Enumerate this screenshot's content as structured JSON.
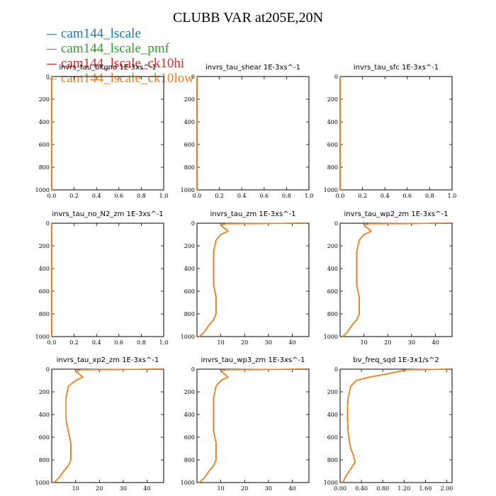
{
  "title": "CLUBB VAR at205E,20N",
  "legend": [
    {
      "name": "cam144_lscale",
      "color": "#1f77b4"
    },
    {
      "name": "cam144_lscale_pmf",
      "color": "#2ca02c"
    },
    {
      "name": "cam144_lscale_ck10hi",
      "color": "#d62728"
    },
    {
      "name": "cam144_lscale_ck10low",
      "color": "#ff7f0e"
    }
  ],
  "chart_data": [
    {
      "type": "line",
      "title": "invrs_tau_bkgnd   1E-3xs^-1",
      "xlim": [
        0,
        1
      ],
      "ylim": [
        1000,
        0
      ],
      "xticks": [
        "0.0",
        "0.2",
        "0.4",
        "0.6",
        "0.8",
        "1.0"
      ],
      "yticks": [
        "0",
        "200",
        "400",
        "600",
        "800",
        "1000"
      ],
      "series": [
        {
          "x": [
            0,
            0
          ],
          "y": [
            0,
            1000
          ]
        }
      ]
    },
    {
      "type": "line",
      "title": "invrs_tau_shear   1E-3xs^-1",
      "xlim": [
        0,
        1
      ],
      "ylim": [
        1000,
        0
      ],
      "xticks": [
        "0.0",
        "0.2",
        "0.4",
        "0.6",
        "0.8",
        "1.0"
      ],
      "yticks": [
        "0",
        "200",
        "400",
        "600",
        "800",
        "1000"
      ],
      "series": [
        {
          "x": [
            0,
            0
          ],
          "y": [
            0,
            1000
          ]
        }
      ]
    },
    {
      "type": "line",
      "title": "invrs_tau_sfc   1E-3xs^-1",
      "xlim": [
        0,
        1
      ],
      "ylim": [
        1000,
        0
      ],
      "xticks": [
        "0.0",
        "0.2",
        "0.4",
        "0.6",
        "0.8",
        "1.0"
      ],
      "yticks": [
        "0",
        "200",
        "400",
        "600",
        "800",
        "1000"
      ],
      "series": [
        {
          "x": [
            0,
            0
          ],
          "y": [
            0,
            1000
          ]
        }
      ]
    },
    {
      "type": "line",
      "title": "invrs_tau_no_N2_zm   1E-3xs^-1",
      "xlim": [
        0,
        1
      ],
      "ylim": [
        1000,
        0
      ],
      "xticks": [
        "0.0",
        "0.2",
        "0.4",
        "0.6",
        "0.8",
        "1.0"
      ],
      "yticks": [
        "0",
        "200",
        "400",
        "600",
        "800",
        "1000"
      ],
      "series": [
        {
          "x": [
            0,
            0
          ],
          "y": [
            0,
            1000
          ]
        }
      ]
    },
    {
      "type": "line",
      "title": "invrs_tau_zm   1E-3xs^-1",
      "xlim": [
        0,
        47
      ],
      "ylim": [
        1000,
        0
      ],
      "xticks": [
        "10",
        "20",
        "30",
        "40"
      ],
      "xtick_values": [
        10,
        20,
        30,
        40
      ],
      "yticks": [
        "0",
        "200",
        "400",
        "600",
        "800",
        "1000"
      ],
      "series": [
        {
          "x": [
            46,
            12,
            10,
            12,
            13,
            10,
            8,
            7,
            7,
            7,
            7,
            8,
            8,
            8,
            7,
            5,
            3,
            1
          ],
          "y": [
            0,
            5,
            20,
            50,
            70,
            100,
            150,
            250,
            350,
            450,
            550,
            650,
            750,
            800,
            850,
            900,
            960,
            1000
          ]
        }
      ]
    },
    {
      "type": "line",
      "title": "invrs_tau_wp2_zm   1E-3xs^-1",
      "xlim": [
        0,
        47
      ],
      "ylim": [
        1000,
        0
      ],
      "xticks": [
        "10",
        "20",
        "30",
        "40"
      ],
      "xtick_values": [
        10,
        20,
        30,
        40
      ],
      "yticks": [
        "0",
        "200",
        "400",
        "600",
        "800",
        "1000"
      ],
      "series": [
        {
          "x": [
            46,
            12,
            10,
            12,
            13,
            10,
            8,
            7,
            7,
            7,
            7,
            8,
            8,
            8,
            7,
            5,
            3,
            1
          ],
          "y": [
            0,
            5,
            20,
            50,
            70,
            100,
            150,
            250,
            350,
            450,
            550,
            650,
            750,
            800,
            850,
            900,
            960,
            1000
          ]
        }
      ]
    },
    {
      "type": "line",
      "title": "invrs_tau_xp2_zm   1E-3xs^-1",
      "xlim": [
        0,
        47
      ],
      "ylim": [
        1000,
        0
      ],
      "xticks": [
        "10",
        "20",
        "30",
        "40"
      ],
      "xtick_values": [
        10,
        20,
        30,
        40
      ],
      "yticks": [
        "0",
        "200",
        "400",
        "600",
        "800",
        "1000"
      ],
      "series": [
        {
          "x": [
            46,
            12,
            10,
            12,
            13,
            10,
            7,
            6,
            6,
            6,
            7,
            8,
            8,
            8,
            7,
            5,
            3,
            1
          ],
          "y": [
            0,
            5,
            20,
            50,
            70,
            100,
            150,
            250,
            350,
            450,
            550,
            650,
            750,
            800,
            850,
            900,
            960,
            1000
          ]
        }
      ]
    },
    {
      "type": "line",
      "title": "invrs_tau_wp3_zm   1E-3xs^-1",
      "xlim": [
        0,
        47
      ],
      "ylim": [
        1000,
        0
      ],
      "xticks": [
        "10",
        "20",
        "30",
        "40"
      ],
      "xtick_values": [
        10,
        20,
        30,
        40
      ],
      "yticks": [
        "0",
        "200",
        "400",
        "600",
        "800",
        "1000"
      ],
      "series": [
        {
          "x": [
            46,
            12,
            10,
            12,
            13,
            10,
            8,
            7,
            7,
            7,
            7,
            8,
            8,
            8,
            7,
            5,
            3,
            1
          ],
          "y": [
            0,
            5,
            20,
            50,
            70,
            100,
            150,
            250,
            350,
            450,
            550,
            650,
            750,
            800,
            850,
            900,
            960,
            1000
          ]
        }
      ]
    },
    {
      "type": "line",
      "title": "bv_freq_sqd   1E-3x1/s^2",
      "xlim": [
        0,
        2.1
      ],
      "ylim": [
        1000,
        0
      ],
      "xticks": [
        "0.00",
        "0.40",
        "0.80",
        "1.20",
        "1.60",
        "2.00"
      ],
      "xtick_values": [
        0,
        0.4,
        0.8,
        1.2,
        1.6,
        2.0
      ],
      "yticks": [
        "0",
        "200",
        "400",
        "600",
        "800",
        "1000"
      ],
      "series": [
        {
          "x": [
            2.05,
            1.25,
            1.1,
            0.9,
            0.55,
            0.3,
            0.2,
            0.15,
            0.14,
            0.14,
            0.15,
            0.18,
            0.2,
            0.25,
            0.28,
            0.2,
            0.1,
            0.05
          ],
          "y": [
            0,
            5,
            20,
            40,
            70,
            100,
            150,
            250,
            350,
            450,
            550,
            650,
            700,
            760,
            820,
            880,
            950,
            1000
          ]
        }
      ]
    }
  ]
}
